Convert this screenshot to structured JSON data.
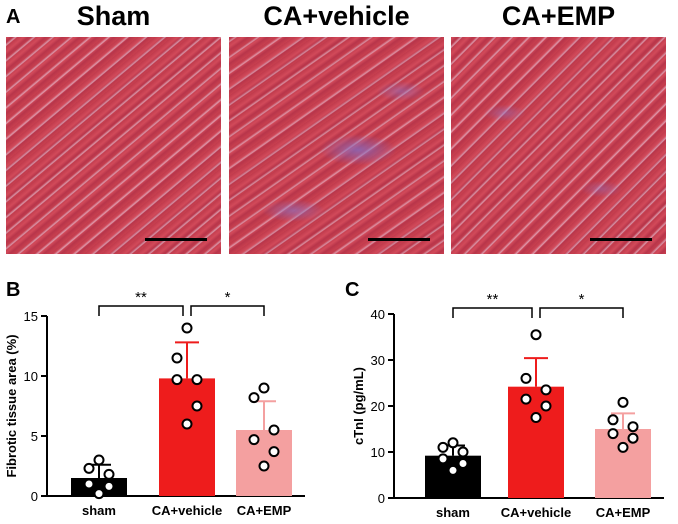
{
  "panelA": {
    "letter": "A",
    "titles": [
      "Sham",
      "CA+vehicle",
      "CA+EMP"
    ]
  },
  "chart_data": [
    {
      "panel": "B",
      "type": "bar",
      "ylabel": "Fibrotic tissue area (%)",
      "ylim": [
        0,
        15
      ],
      "yticks": [
        0,
        5,
        10,
        15
      ],
      "categories": [
        "sham",
        "CA+vehicle",
        "CA+EMP"
      ],
      "values": [
        1.5,
        9.8,
        5.5
      ],
      "errors": [
        1.1,
        3.0,
        2.4
      ],
      "colors": [
        "#000000",
        "#ee1c1c",
        "#f4a0a0"
      ],
      "points": [
        [
          3.0,
          2.3,
          1.8,
          1.0,
          0.8,
          0.2
        ],
        [
          14.0,
          11.5,
          9.7,
          9.7,
          7.5,
          6.0
        ],
        [
          9.0,
          8.2,
          5.5,
          4.7,
          3.7,
          2.5
        ]
      ],
      "significance": [
        {
          "from": 0,
          "to": 1,
          "label": "**"
        },
        {
          "from": 1,
          "to": 2,
          "label": "*"
        }
      ]
    },
    {
      "panel": "C",
      "type": "bar",
      "ylabel": "cTnI (pg/mL)",
      "ylim": [
        0,
        40
      ],
      "yticks": [
        0,
        10,
        20,
        30,
        40
      ],
      "categories": [
        "sham",
        "CA+vehicle",
        "CA+EMP"
      ],
      "values": [
        9.2,
        24.2,
        15.0
      ],
      "errors": [
        2.2,
        6.2,
        3.4
      ],
      "colors": [
        "#000000",
        "#ee1c1c",
        "#f4a0a0"
      ],
      "points": [
        [
          12.0,
          11.0,
          10.0,
          8.5,
          7.5,
          6.0
        ],
        [
          35.5,
          26.0,
          23.5,
          21.5,
          20.0,
          17.5
        ],
        [
          20.8,
          17.0,
          15.5,
          14.0,
          13.0,
          11.0
        ]
      ],
      "significance": [
        {
          "from": 0,
          "to": 1,
          "label": "**"
        },
        {
          "from": 1,
          "to": 2,
          "label": "*"
        }
      ]
    }
  ]
}
